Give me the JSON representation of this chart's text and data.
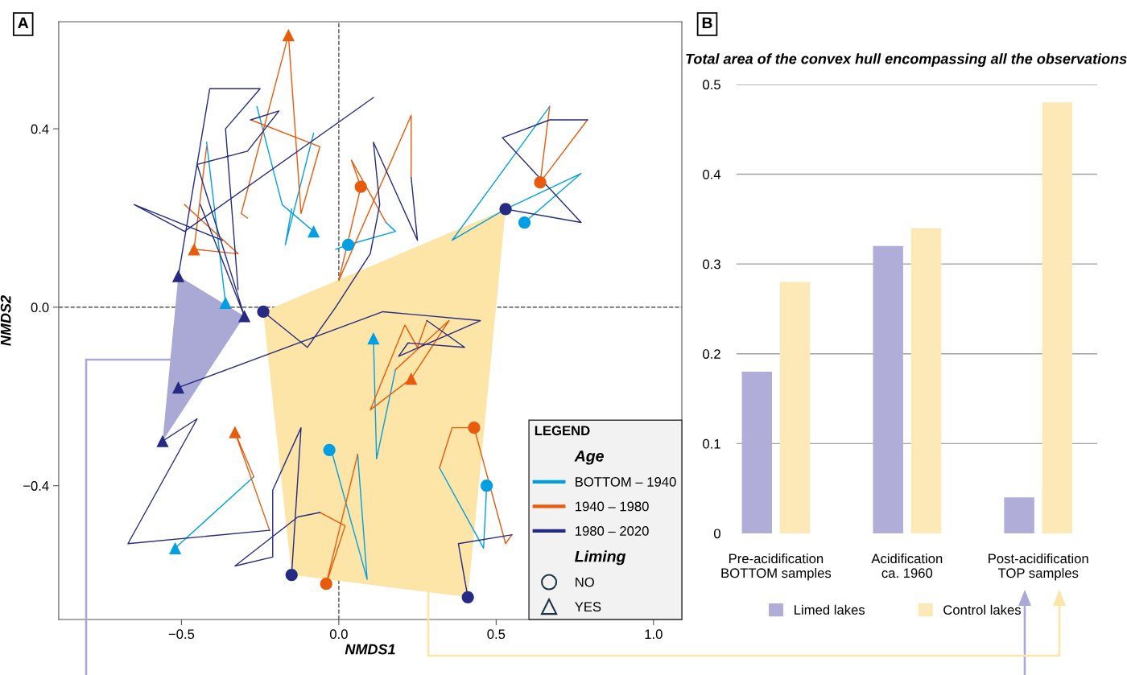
{
  "chart_data": [
    {
      "type": "line",
      "title": "A",
      "xlabel": "NMDS1",
      "ylabel": "NMDS2",
      "legend_title": "LEGEND",
      "legend": "bottom right",
      "annotations": [
        "Age",
        "Liming",
        "NO",
        "YES"
      ],
      "xlim": [
        -0.89,
        1.09
      ],
      "ylim": [
        -0.7,
        0.64
      ],
      "xticks": [
        {
          "value": -0.5,
          "label": "−0.5"
        },
        {
          "value": 0,
          "label": "0.0"
        },
        {
          "value": 0.5,
          "label": "0.5"
        },
        {
          "value": 1,
          "label": "1.0"
        }
      ],
      "yticks": [
        {
          "value": -0.4,
          "label": "−0.4"
        },
        {
          "value": 0,
          "label": "0.0"
        },
        {
          "value": 0.4,
          "label": "0.4"
        }
      ],
      "ref_lines": [
        {
          "axis": "x",
          "value": 0,
          "color": "#555555",
          "line_style": "dashed"
        },
        {
          "axis": "y",
          "value": 0,
          "color": "#333333",
          "line_style": "dashed"
        }
      ],
      "series": [
        {
          "type": "line",
          "name": "BOTTOM – 1940",
          "color": "#009fe3",
          "x": [
            -0.08,
            -0.18,
            -0.26,
            null,
            -0.15,
            -0.17,
            -0.08,
            null,
            -0.36,
            -0.42,
            null,
            -0.01,
            0.03,
            0.18,
            0.15,
            null,
            0.67,
            0.36,
            0.53,
            0.77,
            0.59,
            null,
            -0.52,
            -0.27,
            null,
            -0.02,
            0.09,
            0.06,
            null,
            0.11,
            0.12,
            0.18,
            null,
            0.32,
            0.46,
            0.47
          ],
          "values": [
            0.17,
            0.23,
            0.45,
            null,
            0.22,
            0.14,
            0.39,
            null,
            0.01,
            0.37,
            null,
            0.13,
            0.14,
            0.17,
            0.19,
            null,
            0.45,
            0.15,
            0.22,
            0.3,
            0.19,
            null,
            -0.54,
            -0.38,
            null,
            -0.33,
            -0.61,
            -0.33,
            null,
            -0.07,
            -0.34,
            -0.14,
            null,
            -0.36,
            -0.54,
            -0.4
          ]
        },
        {
          "type": "line",
          "name": "1940 – 1980",
          "color": "#e85a0c",
          "x": [
            -0.49,
            -0.32,
            -0.46,
            -0.42,
            null,
            -0.29,
            -0.31,
            -0.16,
            -0.12,
            -0.06,
            -0.28,
            null,
            0.15,
            0.04,
            0.07,
            0.0,
            0.23,
            0.23,
            null,
            0.67,
            0.64,
            0.79,
            null,
            -0.27,
            -0.33,
            -0.22,
            null,
            0.32,
            0.36,
            0.43,
            0.53,
            0.55,
            null,
            0.18,
            0.35,
            0.23,
            0.1,
            0.21,
            0.25,
            0.28,
            null,
            -0.06,
            0.02,
            -0.04,
            0.06
          ],
          "values": [
            0.23,
            0.12,
            0.13,
            0.36,
            null,
            0.2,
            0.21,
            0.61,
            0.21,
            0.36,
            0.42,
            null,
            0.19,
            0.33,
            0.27,
            0.06,
            0.43,
            0.29,
            null,
            0.45,
            0.28,
            0.42,
            null,
            -0.38,
            -0.28,
            -0.5,
            null,
            -0.36,
            -0.27,
            -0.27,
            -0.53,
            -0.51,
            null,
            -0.14,
            -0.03,
            -0.16,
            -0.23,
            -0.04,
            -0.09,
            -0.03,
            null,
            -0.46,
            -0.49,
            -0.62,
            -0.33
          ]
        },
        {
          "type": "line",
          "name": "1980 – 2020",
          "color": "#252a82",
          "x": [
            -0.51,
            -0.41,
            -0.25,
            -0.36,
            -0.32,
            null,
            -0.37,
            -0.65,
            -0.49,
            0.11,
            null,
            -0.3,
            -0.45,
            -0.29,
            -0.19,
            -0.28,
            null,
            -0.44,
            -0.3,
            null,
            0.23,
            0.25,
            0.11,
            0.13,
            0.1,
            -0.01,
            -0.1,
            -0.24,
            null,
            0.53,
            0.77,
            0.52,
            0.67,
            0.79,
            null,
            -0.51,
            0.14,
            0.45,
            0.19,
            0.22,
            0.4,
            0.28,
            null,
            -0.56,
            -0.45,
            -0.67,
            -0.22,
            null,
            -0.15,
            -0.12,
            -0.21,
            -0.21,
            -0.33,
            -0.13,
            -0.06,
            null,
            0.41,
            0.38,
            0.55
          ],
          "values": [
            0.07,
            0.49,
            0.49,
            0.4,
            0.04,
            null,
            0.15,
            0.23,
            0.17,
            0.47,
            null,
            -0.02,
            0.32,
            0.35,
            0.44,
            0.42,
            null,
            0.23,
            -0.02,
            null,
            0.29,
            0.15,
            0.37,
            0.23,
            0.12,
            0.0,
            -0.09,
            -0.01,
            null,
            0.22,
            0.19,
            0.38,
            0.42,
            0.42,
            null,
            -0.18,
            -0.01,
            -0.03,
            -0.11,
            -0.08,
            -0.09,
            -0.03,
            null,
            -0.3,
            -0.25,
            -0.53,
            -0.5,
            null,
            -0.6,
            -0.27,
            -0.41,
            -0.56,
            -0.58,
            -0.47,
            -0.46,
            null,
            -0.65,
            -0.53,
            -0.51
          ]
        },
        {
          "type": "scatter",
          "marker": "circle",
          "x": [
            0.07,
            0.03,
            -0.24,
            0.53,
            0.59,
            0.64,
            -0.03,
            0.43,
            0.47,
            -0.15,
            -0.04,
            0.41
          ],
          "values": [
            0.27,
            0.14,
            -0.01,
            0.22,
            0.19,
            0.28,
            -0.32,
            -0.27,
            -0.4,
            -0.6,
            -0.62,
            -0.65
          ],
          "colors": [
            "#e85a0c",
            "#009fe3",
            "#252a82",
            "#252a82",
            "#009fe3",
            "#e85a0c",
            "#009fe3",
            "#e85a0c",
            "#009fe3",
            "#252a82",
            "#e85a0c",
            "#252a82"
          ]
        },
        {
          "type": "scatter",
          "marker": "triangle",
          "x": [
            -0.16,
            -0.08,
            -0.46,
            -0.51,
            -0.36,
            -0.3,
            0.11,
            0.23,
            -0.51,
            -0.56,
            -0.33,
            -0.52
          ],
          "values": [
            0.61,
            0.17,
            0.13,
            0.07,
            0.01,
            -0.02,
            -0.07,
            -0.16,
            -0.18,
            -0.3,
            -0.28,
            -0.54
          ],
          "colors": [
            "#e85a0c",
            "#009fe3",
            "#e85a0c",
            "#252a82",
            "#009fe3",
            "#252a82",
            "#009fe3",
            "#e85a0c",
            "#252a82",
            "#252a82",
            "#e85a0c",
            "#009fe3"
          ]
        },
        {
          "type": "area",
          "color": "#aaa9d5",
          "x": [
            -0.51,
            -0.3,
            -0.56
          ],
          "values": [
            0.07,
            -0.02,
            -0.3
          ]
        },
        {
          "type": "area",
          "color": "#fde5a8",
          "x": [
            -0.24,
            0.53,
            0.41,
            -0.15
          ],
          "values": [
            -0.01,
            0.22,
            -0.65,
            -0.6
          ]
        }
      ]
    },
    {
      "type": "bar",
      "title": "B",
      "subtitle": "Total area of the convex hull encompassing all the observations",
      "legend": "bottom",
      "grid": "y",
      "categories": [
        "Pre-acidification\nBOTTOM samples",
        "Acidification\nca. 1960",
        "Post-acidification\nTOP samples"
      ],
      "ylim": [
        0,
        0.5
      ],
      "yticks": [
        0,
        0.1,
        0.2,
        0.3,
        0.4,
        0.5
      ],
      "series": [
        {
          "name": "Limed lakes",
          "color": "#b0aed8",
          "values": [
            0.18,
            0.32,
            0.04
          ]
        },
        {
          "name": "Control lakes",
          "color": "#fde9b8",
          "values": [
            0.28,
            0.34,
            0.48
          ]
        }
      ]
    }
  ]
}
